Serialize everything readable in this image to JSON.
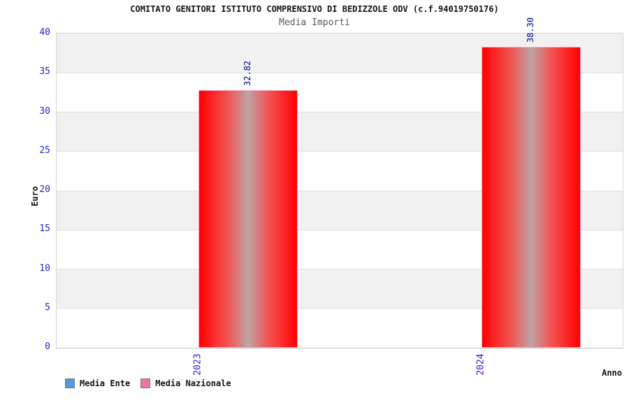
{
  "header": {
    "title": "COMITATO GENITORI ISTITUTO COMPRENSIVO DI BEDIZZOLE ODV (c.f.94019750176)",
    "subtitle": "Media Importi"
  },
  "chart_data": {
    "type": "bar",
    "title": "COMITATO GENITORI ISTITUTO COMPRENSIVO DI BEDIZZOLE ODV (c.f.94019750176)",
    "subtitle": "Media Importi",
    "categories": [
      "2023",
      "2024"
    ],
    "series": [
      {
        "name": "Media Ente",
        "swatch": "#5599e0",
        "values": []
      },
      {
        "name": "Media Nazionale",
        "swatch": "#ec74ab",
        "values": [
          32.82,
          38.3
        ]
      }
    ],
    "value_labels": [
      "32.82",
      "38.30"
    ],
    "xlabel": "Anno",
    "ylabel": "Euro",
    "ylim": [
      0,
      40
    ],
    "yticks": [
      0,
      5,
      10,
      15,
      20,
      25,
      30,
      35,
      40
    ],
    "grid": "horizontal-bands-alternating",
    "legend_position": "bottom-left",
    "bar_style": {
      "edge_color": "#ff0000",
      "mid_color": "#bda4a4",
      "border_color": "#ffaac8"
    }
  },
  "colors": {
    "tick_label": "#2424cd",
    "value_label": "#00008b",
    "band_gray": "#f1f1f1",
    "band_white": "#ffffff",
    "gridline": "#dedede",
    "plot_border": "#d6d6d6",
    "subtitle": "#5a5a5a",
    "legend_border": "#7a7a7a"
  }
}
